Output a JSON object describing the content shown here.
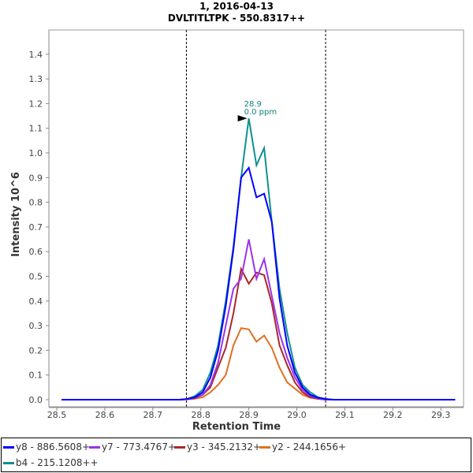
{
  "chart_data": {
    "type": "line",
    "title": "1, 2016-04-13",
    "subtitle": "DVLTITLTPK - 550.8317++",
    "xlabel": "Retention Time",
    "ylabel": "Intensity 10^6",
    "xlim": [
      28.48,
      29.35
    ],
    "ylim": [
      0,
      1.5
    ],
    "xticks": [
      "28.5",
      "28.6",
      "28.7",
      "28.8",
      "28.9",
      "29.0",
      "29.1",
      "29.2",
      "29.3"
    ],
    "yticks": [
      "0.0",
      "0.1",
      "0.2",
      "0.3",
      "0.4",
      "0.5",
      "0.6",
      "0.7",
      "0.8",
      "0.9",
      "1.0",
      "1.1",
      "1.2",
      "1.3",
      "1.4"
    ],
    "boundaries": [
      28.77,
      29.06
    ],
    "annotation": {
      "x": 28.9,
      "y": 1.14,
      "rt": "28.9",
      "ppm": "0.0 ppm"
    },
    "x": [
      28.51,
      28.756,
      28.772,
      28.788,
      28.804,
      28.82,
      28.836,
      28.852,
      28.868,
      28.884,
      28.9,
      28.916,
      28.932,
      28.948,
      28.964,
      28.98,
      28.996,
      29.012,
      29.028,
      29.044,
      29.06,
      29.076,
      29.33
    ],
    "series": [
      {
        "name": "b4 - 215.1208++",
        "color": "#109090",
        "values": [
          0,
          0,
          0.003,
          0.015,
          0.04,
          0.11,
          0.22,
          0.4,
          0.62,
          0.9,
          1.14,
          0.95,
          1.02,
          0.72,
          0.45,
          0.27,
          0.13,
          0.06,
          0.03,
          0.01,
          0.003,
          0,
          0
        ]
      },
      {
        "name": "y2 - 244.1656+",
        "color": "#e07020",
        "values": [
          0,
          0,
          0.001,
          0.004,
          0.01,
          0.03,
          0.06,
          0.1,
          0.22,
          0.29,
          0.285,
          0.235,
          0.26,
          0.21,
          0.13,
          0.07,
          0.045,
          0.02,
          0.008,
          0.003,
          0,
          0,
          0
        ]
      },
      {
        "name": "y3 - 345.2132+",
        "color": "#aa2828",
        "values": [
          0,
          0,
          0.002,
          0.006,
          0.02,
          0.05,
          0.13,
          0.21,
          0.35,
          0.53,
          0.47,
          0.515,
          0.505,
          0.39,
          0.22,
          0.14,
          0.07,
          0.03,
          0.01,
          0.004,
          0,
          0,
          0
        ]
      },
      {
        "name": "y7 - 773.4767+",
        "color": "#9933ee",
        "values": [
          0,
          0,
          0.002,
          0.008,
          0.02,
          0.06,
          0.15,
          0.3,
          0.45,
          0.49,
          0.65,
          0.49,
          0.57,
          0.42,
          0.27,
          0.17,
          0.09,
          0.04,
          0.015,
          0.005,
          0,
          0,
          0
        ]
      },
      {
        "name": "y8 - 886.5608+",
        "color": "#0000ff",
        "values": [
          0,
          0,
          0.003,
          0.01,
          0.03,
          0.09,
          0.2,
          0.38,
          0.61,
          0.9,
          0.94,
          0.82,
          0.835,
          0.72,
          0.41,
          0.22,
          0.11,
          0.05,
          0.02,
          0.008,
          0.003,
          0,
          0
        ]
      }
    ],
    "legend": [
      {
        "name": "y8 - 886.5608+",
        "color": "#0000ff"
      },
      {
        "name": "y7 - 773.4767+",
        "color": "#9933ee"
      },
      {
        "name": "y3 - 345.2132+",
        "color": "#aa2828"
      },
      {
        "name": "y2 - 244.1656+",
        "color": "#e07020"
      },
      {
        "name": "b4 - 215.1208++",
        "color": "#109090"
      }
    ],
    "legend_position": "bottom"
  }
}
